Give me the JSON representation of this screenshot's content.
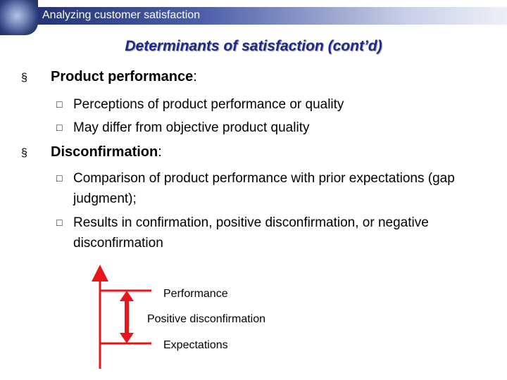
{
  "header": {
    "title": "Analyzing customer satisfaction"
  },
  "slide": {
    "title": "Determinants of satisfaction (cont’d)",
    "bullets": [
      {
        "label": "Product performance",
        "separator": ":",
        "items": [
          "Perceptions of product performance or quality",
          "May differ from objective product quality"
        ]
      },
      {
        "label": "Disconfirmation",
        "separator": ":",
        "items": [
          "Comparison of product performance with prior expectations (gap judgment);",
          "Results in confirmation, positive disconfirmation, or negative disconfirmation"
        ]
      }
    ]
  },
  "diagram": {
    "top_label": "Performance",
    "gap_label": "Positive disconfirmation",
    "bottom_label": "Expectations"
  }
}
